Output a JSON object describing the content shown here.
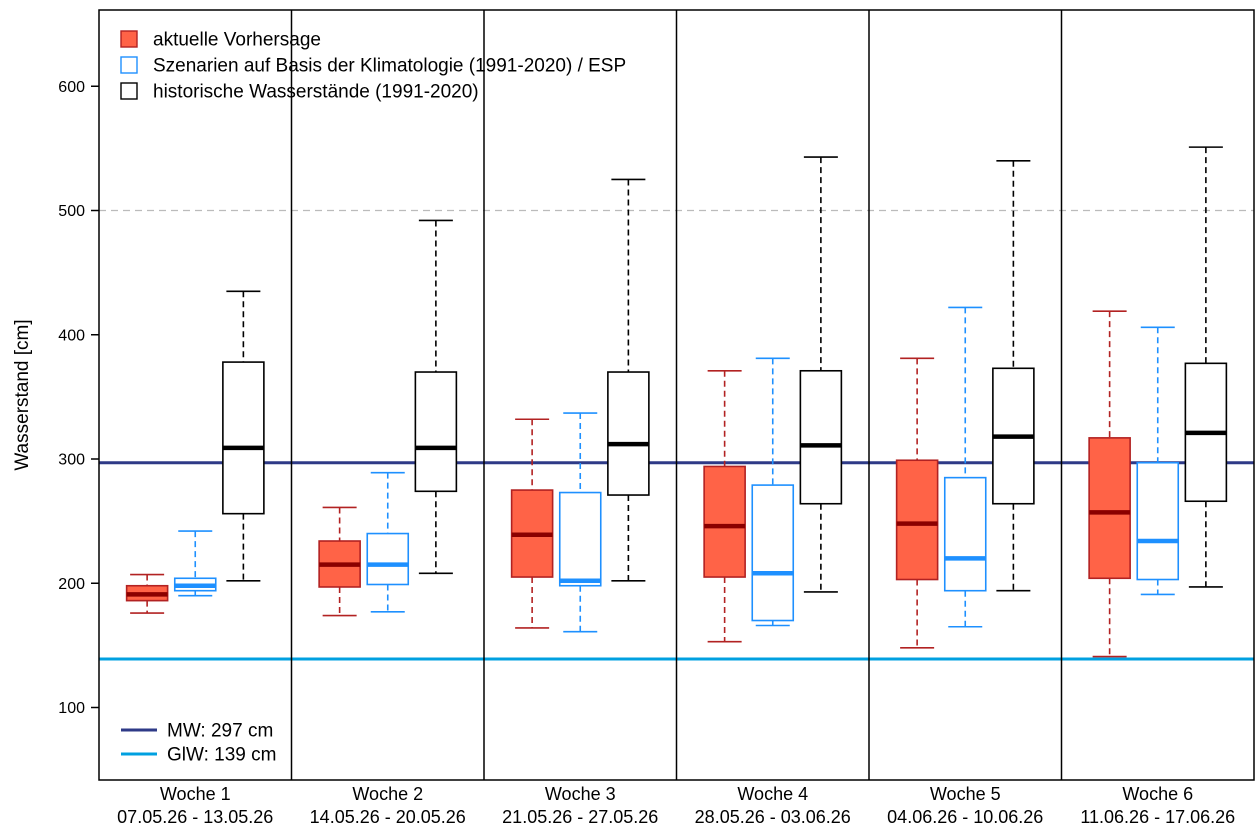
{
  "chart_data": {
    "type": "boxplot",
    "title": "",
    "xlabel": "",
    "ylabel": "Wasserstand [cm]",
    "ylim": [
      40,
      660
    ],
    "yticks": [
      100,
      200,
      300,
      400,
      500,
      600
    ],
    "grid": false,
    "legend": {
      "placement": "top-left",
      "entries": [
        {
          "name": "aktuelle Vorhersage",
          "fill": "#FF6347",
          "stroke": "#B22222"
        },
        {
          "name": "Szenarien auf Basis der Klimatologie (1991-2020) / ESP",
          "fill": "#ffffff",
          "stroke": "#1E90FF"
        },
        {
          "name": "historische Wasserstände (1991-2020)",
          "fill": "#ffffff",
          "stroke": "#000000"
        }
      ]
    },
    "reference_lines": [
      {
        "label": "MW: 297 cm",
        "value": 297,
        "color": "#2E3A87"
      },
      {
        "label": "GlW: 139 cm",
        "value": 139,
        "color": "#00A0E0"
      },
      {
        "value": 500,
        "color": "#BBBBBB",
        "style": "dashed"
      }
    ],
    "weeks": [
      {
        "label": "Woche 1",
        "dates": "07.05.26 - 13.05.26"
      },
      {
        "label": "Woche 2",
        "dates": "14.05.26 - 20.05.26"
      },
      {
        "label": "Woche 3",
        "dates": "21.05.26 - 27.05.26"
      },
      {
        "label": "Woche 4",
        "dates": "28.05.26 - 03.06.26"
      },
      {
        "label": "Woche 5",
        "dates": "04.06.26 - 10.06.26"
      },
      {
        "label": "Woche 6",
        "dates": "11.06.26 - 17.06.26"
      }
    ],
    "series": [
      {
        "name": "aktuelle Vorhersage",
        "fill": "#FF6347",
        "stroke": "#B22222",
        "median_color": "#8B0000",
        "boxes": [
          {
            "min": 176,
            "q1": 186,
            "median": 191,
            "q3": 198,
            "max": 207
          },
          {
            "min": 174,
            "q1": 197,
            "median": 215,
            "q3": 234,
            "max": 261
          },
          {
            "min": 164,
            "q1": 205,
            "median": 239,
            "q3": 275,
            "max": 332
          },
          {
            "min": 153,
            "q1": 205,
            "median": 246,
            "q3": 294,
            "max": 371
          },
          {
            "min": 148,
            "q1": 203,
            "median": 248,
            "q3": 299,
            "max": 381
          },
          {
            "min": 141,
            "q1": 204,
            "median": 257,
            "q3": 317,
            "max": 419
          }
        ]
      },
      {
        "name": "Szenarien auf Basis der Klimatologie (1991-2020) / ESP",
        "fill": "#ffffff",
        "stroke": "#1E90FF",
        "median_color": "#1E90FF",
        "boxes": [
          {
            "min": 190,
            "q1": 194,
            "median": 198,
            "q3": 204,
            "max": 242
          },
          {
            "min": 177,
            "q1": 199,
            "median": 215,
            "q3": 240,
            "max": 289
          },
          {
            "min": 161,
            "q1": 198,
            "median": 202,
            "q3": 273,
            "max": 337
          },
          {
            "min": 166,
            "q1": 170,
            "median": 208,
            "q3": 279,
            "max": 381
          },
          {
            "min": 165,
            "q1": 194,
            "median": 220,
            "q3": 285,
            "max": 422
          },
          {
            "min": 191,
            "q1": 203,
            "median": 234,
            "q3": 297,
            "max": 406
          }
        ]
      },
      {
        "name": "historische Wasserstände (1991-2020)",
        "fill": "#ffffff",
        "stroke": "#000000",
        "median_color": "#000000",
        "boxes": [
          {
            "min": 202,
            "q1": 256,
            "median": 309,
            "q3": 378,
            "max": 435
          },
          {
            "min": 208,
            "q1": 274,
            "median": 309,
            "q3": 370,
            "max": 492
          },
          {
            "min": 202,
            "q1": 271,
            "median": 312,
            "q3": 370,
            "max": 525
          },
          {
            "min": 193,
            "q1": 264,
            "median": 311,
            "q3": 371,
            "max": 543
          },
          {
            "min": 194,
            "q1": 264,
            "median": 318,
            "q3": 373,
            "max": 540
          },
          {
            "min": 197,
            "q1": 266,
            "median": 321,
            "q3": 377,
            "max": 551
          }
        ]
      }
    ]
  }
}
